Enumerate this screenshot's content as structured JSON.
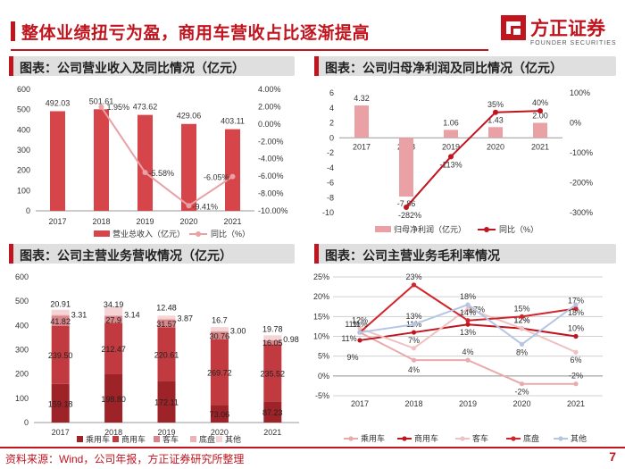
{
  "header": {
    "title": "整体业绩扭亏为盈，商用车营收占比逐渐提高"
  },
  "logo": {
    "cn": "方正证券",
    "en": "FOUNDER SECURITIES"
  },
  "footer": {
    "source": "资料来源：Wind，公司年报，方正证券研究所整理",
    "page": "7"
  },
  "colors": {
    "brand": "#c0141e",
    "bar": "#d6454a",
    "line": "#e9a1a5",
    "dark_line": "#c0141e"
  },
  "chart_data": [
    {
      "id": "revenue",
      "panel_title": "图表：公司营业收入及同比情况（亿元）",
      "type": "bar",
      "categories": [
        "2017",
        "2018",
        "2019",
        "2020",
        "2021"
      ],
      "series": [
        {
          "name": "营业总收入（亿元）",
          "values": [
            492.03,
            501.61,
            473.62,
            429.06,
            403.11
          ],
          "axis": "left"
        },
        {
          "name": "同比（%）",
          "type": "line",
          "values": [
            null,
            1.95,
            -5.58,
            -9.41,
            -6.05
          ],
          "axis": "right"
        }
      ],
      "value_labels": [
        "492.03",
        "501.61",
        "473.62",
        "429.06",
        "403.11"
      ],
      "line_labels": [
        "",
        "1.95%",
        "-5.58%",
        "-9.41%",
        "-6.05%"
      ],
      "ylim": [
        0,
        600
      ],
      "yticks": [
        "0",
        "100",
        "200",
        "300",
        "400",
        "500",
        "600"
      ],
      "y2lim": [
        -10,
        4
      ],
      "y2ticks": [
        "4.00%",
        "2.00%",
        "0.00%",
        "-2.00%",
        "-4.00%",
        "-6.00%",
        "-8.00%",
        "-10.00%"
      ],
      "legend": [
        "营业总收入（亿元）",
        "同比（%）"
      ]
    },
    {
      "id": "netprofit",
      "panel_title": "图表：公司归母净利润及同比情况（亿元）",
      "type": "bar",
      "categories": [
        "2017",
        "2018",
        "2019",
        "2020",
        "2021"
      ],
      "series": [
        {
          "name": "归母净利润（亿元）",
          "values": [
            4.32,
            -7.86,
            1.06,
            1.43,
            2.0
          ],
          "axis": "left"
        },
        {
          "name": "同比（%）",
          "type": "line",
          "values": [
            null,
            -282,
            -113,
            35,
            40
          ],
          "axis": "right"
        }
      ],
      "value_labels": [
        "4.32",
        "-7.86",
        "1.06",
        "1.43",
        "2.00"
      ],
      "line_labels": [
        "",
        "-282%",
        "-113%",
        "35%",
        "40%"
      ],
      "ylim": [
        -10,
        6
      ],
      "yticks": [
        "6",
        "4",
        "2",
        "0",
        "-2",
        "-4",
        "-6",
        "-8",
        "-10"
      ],
      "y2lim": [
        -300,
        100
      ],
      "y2ticks": [
        "100%",
        "0%",
        "-100%",
        "-200%",
        "-300%"
      ],
      "legend": [
        "归母净利润（亿元）",
        "同比（%）"
      ]
    },
    {
      "id": "segments",
      "panel_title": "图表：公司主营业务营收情况（亿元）",
      "type": "bar",
      "stacked": true,
      "categories": [
        "2017",
        "2018",
        "2019",
        "2020",
        "2021"
      ],
      "series": [
        {
          "name": "乘用车",
          "values": [
            159.18,
            198.8,
            172.11,
            73.06,
            87.23
          ],
          "labels": [
            "159.18",
            "198.80",
            "172.11",
            "73.06",
            "87.23"
          ]
        },
        {
          "name": "商用车",
          "values": [
            239.5,
            212.47,
            220.61,
            269.72,
            235.52
          ],
          "labels": [
            "239.50",
            "212.47",
            "220.61",
            "269.72",
            "235.52"
          ]
        },
        {
          "name": "客车",
          "values": [
            41.82,
            27.9,
            31.57,
            30.76,
            16.05
          ],
          "labels": [
            "41.82",
            "27.9",
            "31.57",
            "30.76",
            "16.05"
          ]
        },
        {
          "name": "底盘",
          "values": [
            3.31,
            3.14,
            3.87,
            3.0,
            0.98
          ],
          "labels": [
            "3.31",
            "3.14",
            "3.87",
            "3.00",
            "0.98"
          ]
        },
        {
          "name": "其他",
          "values": [
            20.91,
            34.19,
            12.48,
            16.7,
            19.78
          ],
          "labels": [
            "20.91",
            "34.19",
            "12.48",
            "16.7",
            "19.78"
          ]
        }
      ],
      "ylim": [
        0,
        600
      ],
      "yticks": [
        "0",
        "100",
        "200",
        "300",
        "400",
        "500",
        "600"
      ],
      "legend": [
        "乘用车",
        "商用车",
        "客车",
        "底盘",
        "其他"
      ]
    },
    {
      "id": "margins",
      "panel_title": "图表：公司主营业务毛利率情况",
      "type": "line",
      "categories": [
        "2017",
        "2018",
        "2019",
        "2020",
        "2021"
      ],
      "series": [
        {
          "name": "乘用车",
          "values": [
            11,
            4,
            4,
            -2,
            -2
          ],
          "labels": [
            "11%",
            "4%",
            "4%",
            "-2%",
            "-2%"
          ]
        },
        {
          "name": "商用车",
          "values": [
            9,
            11,
            13,
            12,
            10
          ],
          "labels": [
            "9%",
            "11%",
            "13%",
            "12%",
            "10%"
          ]
        },
        {
          "name": "客车",
          "values": [
            12,
            7,
            17,
            12,
            6
          ],
          "labels": [
            "12%",
            "7%",
            "17%",
            "12%",
            "6%"
          ]
        },
        {
          "name": "底盘",
          "values": [
            11,
            23,
            14,
            15,
            17
          ],
          "labels": [
            "11%",
            "23%",
            "14%",
            "15%",
            "17%"
          ]
        },
        {
          "name": "其他",
          "values": [
            11,
            13,
            18,
            8,
            18
          ],
          "labels": [
            "11%",
            "13%",
            "18%",
            "8%",
            "18%"
          ]
        }
      ],
      "ylim": [
        -5,
        25
      ],
      "yticks": [
        "25%",
        "20%",
        "15%",
        "10%",
        "5%",
        "0%",
        "-5%"
      ],
      "legend": [
        "乘用车",
        "商用车",
        "客车",
        "底盘",
        "其他"
      ]
    }
  ]
}
